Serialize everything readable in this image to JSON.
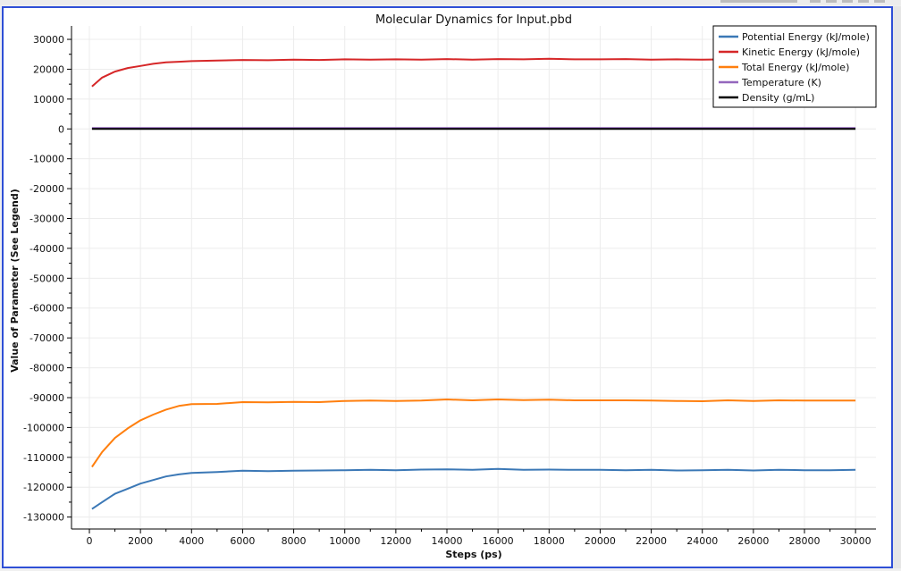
{
  "chart_data": {
    "type": "line",
    "title": "Molecular Dynamics for Input.pbd",
    "xlabel": "Steps (ps)",
    "ylabel": "Value of Parameter (See Legend)",
    "xlim": [
      -700,
      30800
    ],
    "ylim": [
      -134000,
      34500
    ],
    "xticks": [
      0,
      2000,
      4000,
      6000,
      8000,
      10000,
      12000,
      14000,
      16000,
      18000,
      20000,
      22000,
      24000,
      26000,
      28000,
      30000
    ],
    "yticks": [
      30000,
      20000,
      10000,
      0,
      -10000,
      -20000,
      -30000,
      -40000,
      -50000,
      -60000,
      -70000,
      -80000,
      -90000,
      -100000,
      -110000,
      -120000,
      -130000
    ],
    "grid": true,
    "legend_position": "top-right",
    "series": [
      {
        "name": "Potential Energy (kJ/mole)",
        "color": "#3b78b6",
        "x": [
          100,
          500,
          1000,
          1500,
          2000,
          2500,
          3000,
          3500,
          4000,
          5000,
          6000,
          7000,
          8000,
          9000,
          10000,
          11000,
          12000,
          13000,
          14000,
          15000,
          16000,
          17000,
          18000,
          19000,
          20000,
          21000,
          22000,
          23000,
          24000,
          25000,
          26000,
          27000,
          28000,
          29000,
          30000
        ],
        "y": [
          -127300,
          -125000,
          -122200,
          -120500,
          -118800,
          -117600,
          -116400,
          -115700,
          -115200,
          -114900,
          -114500,
          -114600,
          -114500,
          -114400,
          -114300,
          -114200,
          -114300,
          -114100,
          -114000,
          -114200,
          -113900,
          -114200,
          -114100,
          -114200,
          -114200,
          -114300,
          -114200,
          -114400,
          -114300,
          -114200,
          -114400,
          -114200,
          -114300,
          -114300,
          -114200
        ]
      },
      {
        "name": "Kinetic Energy (kJ/mole)",
        "color": "#d62728",
        "x": [
          100,
          500,
          1000,
          1500,
          2000,
          2500,
          3000,
          3500,
          4000,
          5000,
          6000,
          7000,
          8000,
          9000,
          10000,
          11000,
          12000,
          13000,
          14000,
          15000,
          16000,
          17000,
          18000,
          19000,
          20000,
          21000,
          22000,
          23000,
          24000,
          25000,
          26000,
          27000,
          28000,
          29000,
          30000
        ],
        "y": [
          14200,
          17200,
          19200,
          20400,
          21100,
          21800,
          22300,
          22500,
          22700,
          22900,
          23100,
          23000,
          23200,
          23100,
          23300,
          23200,
          23300,
          23200,
          23400,
          23200,
          23400,
          23300,
          23500,
          23300,
          23300,
          23400,
          23200,
          23300,
          23200,
          23300,
          23300,
          23300,
          23200,
          23300,
          23300
        ]
      },
      {
        "name": "Total Energy (kJ/mole)",
        "color": "#ff7f0e",
        "x": [
          100,
          500,
          1000,
          1500,
          2000,
          2500,
          3000,
          3500,
          4000,
          5000,
          6000,
          7000,
          8000,
          9000,
          10000,
          11000,
          12000,
          13000,
          14000,
          15000,
          16000,
          17000,
          18000,
          19000,
          20000,
          21000,
          22000,
          23000,
          24000,
          25000,
          26000,
          27000,
          28000,
          29000,
          30000
        ],
        "y": [
          -113200,
          -108200,
          -103500,
          -100300,
          -97600,
          -95700,
          -94000,
          -92800,
          -92200,
          -92100,
          -91500,
          -91600,
          -91400,
          -91500,
          -91100,
          -91000,
          -91100,
          -91000,
          -90600,
          -90900,
          -90600,
          -90800,
          -90700,
          -90900,
          -90900,
          -90900,
          -91000,
          -91100,
          -91200,
          -90900,
          -91100,
          -90900,
          -91000,
          -91000,
          -91000
        ]
      },
      {
        "name": "Temperature (K)",
        "color": "#9467bd",
        "x": [
          100,
          5000,
          10000,
          15000,
          20000,
          25000,
          30000
        ],
        "y": [
          280,
          300,
          300,
          300,
          300,
          300,
          300
        ]
      },
      {
        "name": "Density (g/mL)",
        "color": "#000000",
        "x": [
          100,
          5000,
          10000,
          15000,
          20000,
          25000,
          30000
        ],
        "y": [
          1,
          1,
          1,
          1,
          1,
          1,
          1
        ]
      }
    ]
  }
}
